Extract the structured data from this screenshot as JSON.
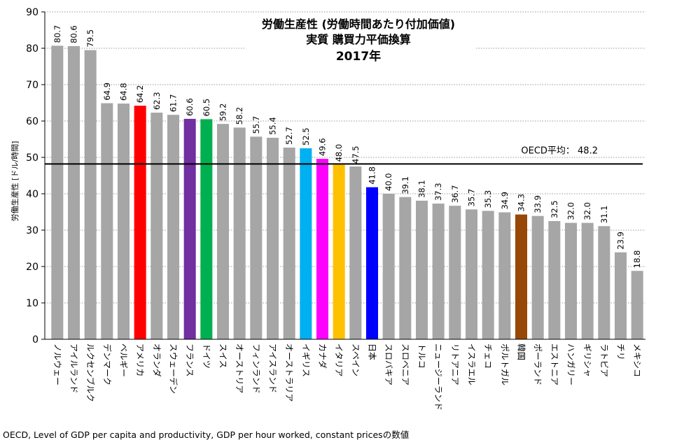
{
  "chart_data": {
    "type": "bar",
    "title": [
      "労働生産性 (労働時間あたり付加価値)",
      "実質 購買力平価換算",
      "2017年"
    ],
    "ylabel": "労働生産性 [ドル/時間]",
    "xlabel": "",
    "ylim": [
      0,
      90
    ],
    "yticks": [
      0,
      10,
      20,
      30,
      40,
      50,
      60,
      70,
      80,
      90
    ],
    "grid": true,
    "categories": [
      "ノルウェー",
      "アイルランド",
      "ルクセンブルク",
      "デンマーク",
      "ベルギー",
      "アメリカ",
      "オランダ",
      "スウェーデン",
      "フランス",
      "ドイツ",
      "スイス",
      "オーストリア",
      "フィンランド",
      "アイスランド",
      "オーストラリア",
      "イギリス",
      "カナダ",
      "イタリア",
      "スペイン",
      "日本",
      "スロバキア",
      "スロベニア",
      "トルコ",
      "ニュージーランド",
      "リトアニア",
      "イスラエル",
      "チェコ",
      "ポルトガル",
      "韓国",
      "ポーランド",
      "エストニア",
      "ハンガリー",
      "ギリシャ",
      "ラトビア",
      "チリ",
      "メキシコ"
    ],
    "values": [
      80.7,
      80.6,
      79.5,
      64.9,
      64.8,
      64.2,
      62.3,
      61.7,
      60.6,
      60.5,
      59.2,
      58.2,
      55.7,
      55.4,
      52.7,
      52.5,
      49.6,
      48.0,
      47.5,
      41.8,
      40.0,
      39.1,
      38.1,
      37.3,
      36.7,
      35.7,
      35.3,
      34.9,
      34.3,
      33.9,
      32.5,
      32.0,
      32.0,
      31.1,
      23.9,
      18.8
    ],
    "value_labels": [
      "80.7",
      "80.6",
      "79.5",
      "64.9",
      "64.8",
      "64.2",
      "62.3",
      "61.7",
      "60.6",
      "60.5",
      "59.2",
      "58.2",
      "55.7",
      "55.4",
      "52.7",
      "52.5",
      "49.6",
      "48.0",
      "47.5",
      "41.8",
      "40.0",
      "39.1",
      "38.1",
      "37.3",
      "36.7",
      "35.7",
      "35.3",
      "34.9",
      "34.3",
      "33.9",
      "32.5",
      "32.0",
      "32.0",
      "31.1",
      "23.9",
      "18.8"
    ],
    "default_color": "#a6a6a6",
    "highlight_colors": {
      "アメリカ": "#ff0000",
      "フランス": "#7030a0",
      "ドイツ": "#00b050",
      "イギリス": "#00b0f0",
      "カナダ": "#ff00ff",
      "イタリア": "#ffc000",
      "日本": "#0000ff",
      "韓国": "#974706"
    },
    "reference_line": {
      "value": 48.2,
      "label": "OECD平均： 48.2"
    }
  },
  "source_note": "OECD, Level of GDP per capita and productivity, GDP per hour worked, constant pricesの数値"
}
